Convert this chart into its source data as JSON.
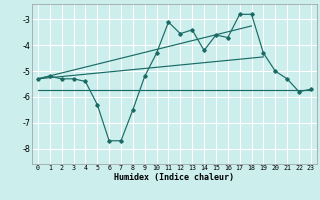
{
  "xlabel": "Humidex (Indice chaleur)",
  "bg_color": "#cceeed",
  "grid_color": "#ffffff",
  "line_color": "#1a6b65",
  "xlim": [
    -0.5,
    23.5
  ],
  "ylim": [
    -8.6,
    -2.4
  ],
  "yticks": [
    -8,
    -7,
    -6,
    -5,
    -4,
    -3
  ],
  "xticks": [
    0,
    1,
    2,
    3,
    4,
    5,
    6,
    7,
    8,
    9,
    10,
    11,
    12,
    13,
    14,
    15,
    16,
    17,
    18,
    19,
    20,
    21,
    22,
    23
  ],
  "main_x": [
    0,
    1,
    2,
    3,
    4,
    5,
    6,
    7,
    8,
    9,
    10,
    11,
    12,
    13,
    14,
    15,
    16,
    17,
    18,
    19,
    20,
    21,
    22,
    23
  ],
  "main_y": [
    -5.3,
    -5.2,
    -5.3,
    -5.3,
    -5.4,
    -6.3,
    -7.7,
    -7.7,
    -6.5,
    -5.2,
    -4.3,
    -3.1,
    -3.55,
    -3.4,
    -4.2,
    -3.6,
    -3.7,
    -2.8,
    -2.8,
    -4.3,
    -5.0,
    -5.3,
    -5.8,
    -5.7
  ],
  "hline_x": [
    0,
    23
  ],
  "hline_y": [
    -5.75,
    -5.75
  ],
  "line2_x": [
    0,
    19
  ],
  "line2_y": [
    -5.3,
    -4.45
  ],
  "line3_x": [
    0,
    18
  ],
  "line3_y": [
    -5.3,
    -3.25
  ]
}
